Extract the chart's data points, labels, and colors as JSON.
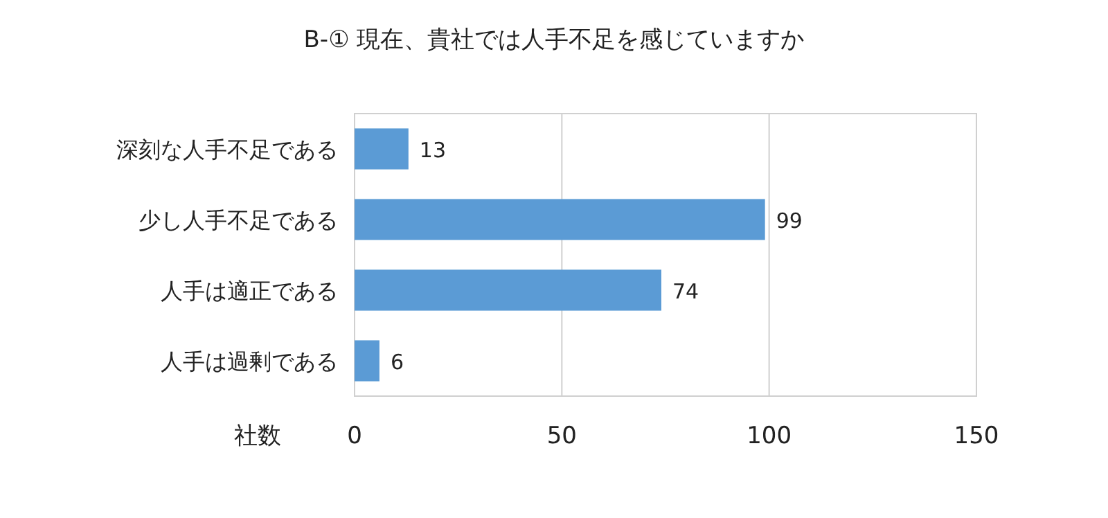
{
  "chart_data": {
    "type": "bar",
    "orientation": "horizontal",
    "title": "B-① 現在、貴社では人手不足を感じていますか",
    "xlabel": "社数",
    "categories": [
      "深刻な人手不足である",
      "少し人手不足である",
      "人手は適正である",
      "人手は過剰である"
    ],
    "values": [
      13,
      99,
      74,
      6
    ],
    "color": "#5b9bd5",
    "xlim": [
      0,
      150
    ],
    "xticks": [
      0,
      50,
      100,
      150
    ],
    "grid": "x",
    "data_labels": true
  }
}
